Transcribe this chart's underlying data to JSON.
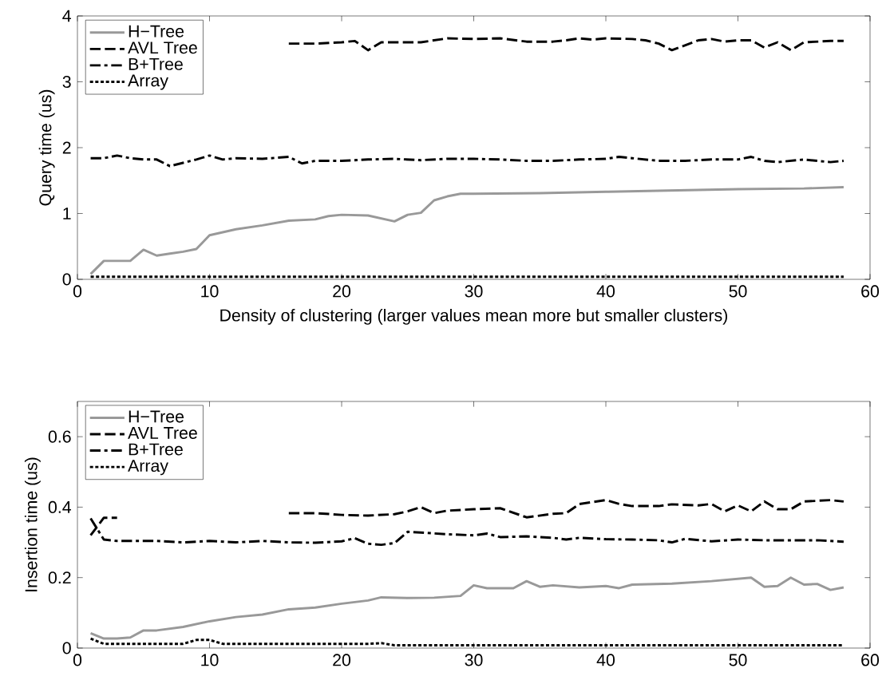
{
  "chart_data": [
    {
      "type": "line",
      "xlabel": "Density of clustering (larger values mean more but smaller clusters)",
      "ylabel": "Query time (us)",
      "xlim": [
        0,
        60
      ],
      "xticks": [
        0,
        10,
        20,
        30,
        40,
        50,
        60
      ],
      "ylim": [
        0,
        4
      ],
      "yticks": [
        0,
        1,
        2,
        3,
        4
      ],
      "grid": false,
      "legend": "top left",
      "marker": "none",
      "series": [
        {
          "name": "H−Tree",
          "color": "#999999",
          "line_style": "solid",
          "x": [
            1,
            2,
            3,
            4,
            5,
            6,
            7,
            8,
            9,
            10,
            12,
            14,
            16,
            18,
            19,
            20,
            22,
            24,
            25,
            26,
            27,
            28,
            29,
            30,
            35,
            40,
            45,
            50,
            55,
            58
          ],
          "values": [
            0.08,
            0.28,
            0.28,
            0.28,
            0.45,
            0.36,
            0.39,
            0.42,
            0.46,
            0.67,
            0.76,
            0.82,
            0.89,
            0.91,
            0.96,
            0.98,
            0.97,
            0.88,
            0.98,
            1.01,
            1.2,
            1.26,
            1.3,
            1.3,
            1.31,
            1.33,
            1.35,
            1.37,
            1.38,
            1.4
          ]
        },
        {
          "name": "AVL Tree",
          "color": "#000000",
          "line_style": "dashed",
          "x": [
            16,
            18,
            20,
            21,
            22,
            23,
            25,
            26,
            28,
            30,
            32,
            34,
            36,
            37,
            38,
            39,
            40,
            42,
            43,
            44,
            45,
            47,
            48,
            49,
            50,
            51,
            52,
            53,
            54,
            55,
            57,
            58
          ],
          "values": [
            3.58,
            3.58,
            3.6,
            3.62,
            3.48,
            3.6,
            3.6,
            3.6,
            3.66,
            3.65,
            3.66,
            3.61,
            3.61,
            3.63,
            3.66,
            3.64,
            3.66,
            3.65,
            3.63,
            3.58,
            3.48,
            3.63,
            3.65,
            3.61,
            3.63,
            3.63,
            3.52,
            3.6,
            3.48,
            3.6,
            3.62,
            3.62
          ]
        },
        {
          "name": "B+Tree",
          "color": "#000000",
          "line_style": "dashdot",
          "x": [
            1,
            2,
            3,
            4,
            5,
            6,
            7,
            8,
            9,
            10,
            11,
            12,
            14,
            16,
            17,
            18,
            20,
            22,
            24,
            26,
            28,
            30,
            32,
            34,
            36,
            38,
            40,
            41,
            42,
            44,
            46,
            48,
            50,
            51,
            52,
            53,
            55,
            57,
            58
          ],
          "values": [
            1.84,
            1.84,
            1.88,
            1.84,
            1.82,
            1.82,
            1.72,
            1.77,
            1.82,
            1.88,
            1.82,
            1.84,
            1.83,
            1.86,
            1.76,
            1.8,
            1.8,
            1.82,
            1.83,
            1.81,
            1.83,
            1.83,
            1.82,
            1.8,
            1.8,
            1.82,
            1.83,
            1.86,
            1.84,
            1.8,
            1.8,
            1.82,
            1.82,
            1.86,
            1.8,
            1.78,
            1.82,
            1.78,
            1.8
          ]
        },
        {
          "name": "Array",
          "color": "#000000",
          "line_style": "dotted",
          "x": [
            1,
            10,
            20,
            30,
            40,
            50,
            58
          ],
          "values": [
            0.04,
            0.04,
            0.04,
            0.04,
            0.04,
            0.04,
            0.04
          ]
        }
      ]
    },
    {
      "type": "line",
      "ylabel": "Insertion time (us)",
      "xlim": [
        0,
        60
      ],
      "xticks": [
        0,
        10,
        20,
        30,
        40,
        50,
        60
      ],
      "ylim": [
        0,
        0.7
      ],
      "yticks": [
        0,
        0.2,
        0.4,
        0.6
      ],
      "grid": false,
      "legend": "top left",
      "marker": "none",
      "series": [
        {
          "name": "H−Tree",
          "color": "#999999",
          "line_style": "solid",
          "x": [
            1,
            2,
            3,
            4,
            5,
            6,
            8,
            10,
            12,
            14,
            16,
            18,
            20,
            22,
            23,
            25,
            27,
            29,
            30,
            31,
            32,
            33,
            34,
            35,
            36,
            38,
            40,
            41,
            42,
            45,
            48,
            51,
            52,
            53,
            54,
            55,
            56,
            57,
            58
          ],
          "values": [
            0.042,
            0.027,
            0.027,
            0.03,
            0.05,
            0.05,
            0.06,
            0.076,
            0.088,
            0.095,
            0.11,
            0.115,
            0.126,
            0.135,
            0.144,
            0.142,
            0.143,
            0.148,
            0.178,
            0.17,
            0.17,
            0.17,
            0.19,
            0.174,
            0.178,
            0.172,
            0.176,
            0.17,
            0.18,
            0.183,
            0.19,
            0.2,
            0.174,
            0.176,
            0.2,
            0.18,
            0.182,
            0.165,
            0.172
          ]
        },
        {
          "name": "AVL Tree",
          "color": "#000000",
          "line_style": "dashed",
          "x": [
            1,
            2,
            3,
            4,
            16,
            18,
            20,
            22,
            24,
            25,
            26,
            27,
            28,
            30,
            32,
            34,
            36,
            37,
            38,
            40,
            41,
            42,
            44,
            45,
            47,
            48,
            49,
            50,
            51,
            52,
            53,
            54,
            55,
            57,
            58
          ],
          "values": [
            0.32,
            0.37,
            0.37,
            null,
            0.383,
            0.383,
            0.378,
            0.376,
            0.38,
            0.388,
            0.4,
            0.383,
            0.39,
            0.394,
            0.397,
            0.371,
            0.381,
            0.383,
            0.409,
            0.42,
            0.409,
            0.403,
            0.403,
            0.408,
            0.405,
            0.409,
            0.388,
            0.405,
            0.388,
            0.416,
            0.394,
            0.394,
            0.416,
            0.42,
            0.416
          ]
        },
        {
          "name": "B+Tree",
          "color": "#000000",
          "line_style": "dashdot",
          "x": [
            1,
            2,
            3,
            6,
            8,
            10,
            12,
            14,
            16,
            18,
            20,
            21,
            22,
            23,
            24,
            25,
            26,
            28,
            30,
            31,
            32,
            34,
            36,
            37,
            38,
            40,
            42,
            44,
            45,
            46,
            48,
            50,
            52,
            54,
            56,
            58
          ],
          "values": [
            0.368,
            0.308,
            0.304,
            0.304,
            0.3,
            0.304,
            0.3,
            0.304,
            0.3,
            0.299,
            0.303,
            0.312,
            0.296,
            0.293,
            0.298,
            0.33,
            0.328,
            0.323,
            0.32,
            0.325,
            0.315,
            0.317,
            0.313,
            0.308,
            0.313,
            0.309,
            0.308,
            0.306,
            0.3,
            0.31,
            0.303,
            0.308,
            0.306,
            0.306,
            0.306,
            0.302
          ]
        },
        {
          "name": "Array",
          "color": "#000000",
          "line_style": "dotted",
          "x": [
            1,
            2,
            8,
            9,
            10,
            11,
            22,
            23,
            24,
            58
          ],
          "values": [
            0.027,
            0.012,
            0.012,
            0.023,
            0.023,
            0.012,
            0.012,
            0.014,
            0.008,
            0.008
          ]
        }
      ]
    }
  ]
}
